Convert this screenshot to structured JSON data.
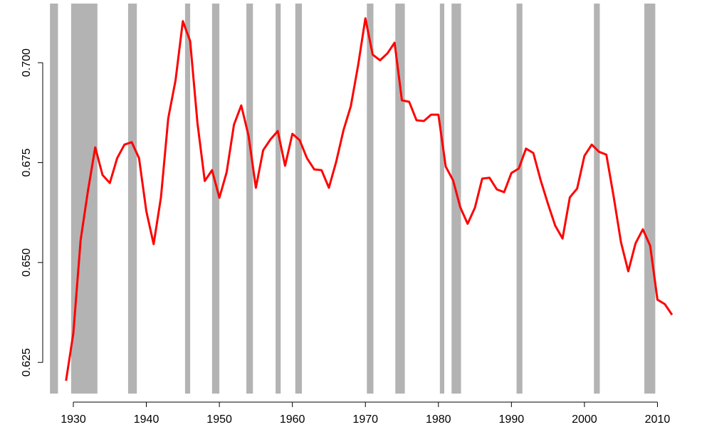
{
  "chart_data": {
    "type": "line",
    "color": "#ff0000",
    "band_color": "#b3b3b3",
    "x": [
      1929,
      1930,
      1931,
      1932,
      1933,
      1934,
      1935,
      1936,
      1937,
      1938,
      1939,
      1940,
      1941,
      1942,
      1943,
      1944,
      1945,
      1946,
      1947,
      1948,
      1949,
      1950,
      1951,
      1952,
      1953,
      1954,
      1955,
      1956,
      1957,
      1958,
      1959,
      1960,
      1961,
      1962,
      1963,
      1964,
      1965,
      1966,
      1967,
      1968,
      1969,
      1970,
      1971,
      1972,
      1973,
      1974,
      1975,
      1976,
      1977,
      1978,
      1979,
      1980,
      1981,
      1982,
      1983,
      1984,
      1985,
      1986,
      1987,
      1988,
      1989,
      1990,
      1991,
      1992,
      1993,
      1994,
      1995,
      1996,
      1997,
      1998,
      1999,
      2000,
      2001,
      2002,
      2003,
      2004,
      2005,
      2006,
      2007,
      2008,
      2009,
      2010,
      2011,
      2012
    ],
    "values": [
      0.6204,
      0.6323,
      0.6556,
      0.6679,
      0.6788,
      0.6719,
      0.6699,
      0.6761,
      0.6795,
      0.6801,
      0.6761,
      0.6628,
      0.6546,
      0.6663,
      0.6861,
      0.6956,
      0.7104,
      0.7054,
      0.6849,
      0.6704,
      0.6731,
      0.6662,
      0.6726,
      0.6845,
      0.6893,
      0.6817,
      0.6687,
      0.6781,
      0.6808,
      0.6829,
      0.6742,
      0.6822,
      0.6806,
      0.6761,
      0.6733,
      0.6731,
      0.6687,
      0.6752,
      0.6831,
      0.6891,
      0.6993,
      0.7111,
      0.702,
      0.7006,
      0.7023,
      0.705,
      0.6906,
      0.6902,
      0.6856,
      0.6854,
      0.687,
      0.687,
      0.674,
      0.6706,
      0.6638,
      0.6597,
      0.6637,
      0.671,
      0.6712,
      0.6683,
      0.6676,
      0.6724,
      0.6735,
      0.6785,
      0.6774,
      0.6706,
      0.6647,
      0.6592,
      0.656,
      0.6663,
      0.6685,
      0.6767,
      0.6795,
      0.6777,
      0.677,
      0.6665,
      0.6551,
      0.6478,
      0.6548,
      0.6583,
      0.6542,
      0.6407,
      0.6396,
      0.6369
    ],
    "recessions": [
      [
        1926.8,
        1927.9
      ],
      [
        1929.7,
        1933.3
      ],
      [
        1937.5,
        1938.7
      ],
      [
        1945.3,
        1946.0
      ],
      [
        1949.0,
        1950.0
      ],
      [
        1953.7,
        1954.6
      ],
      [
        1957.7,
        1958.4
      ],
      [
        1960.4,
        1961.3
      ],
      [
        1970.2,
        1971.1
      ],
      [
        1974.1,
        1975.4
      ],
      [
        1980.2,
        1980.8
      ],
      [
        1981.8,
        1983.1
      ],
      [
        1990.7,
        1991.5
      ],
      [
        2001.3,
        2002.1
      ],
      [
        2008.2,
        2009.7
      ]
    ],
    "xlim": [
      1926.1,
      2016.1
    ],
    "ylim": [
      0.6172,
      0.7148
    ],
    "xticks": [
      1930,
      1940,
      1950,
      1960,
      1970,
      1980,
      1990,
      2000,
      2010
    ],
    "yticks": [
      0.625,
      {
        "value": 0.65,
        "label": "0.650"
      },
      0.675,
      {
        "value": 0.7,
        "label": "0.700"
      }
    ]
  }
}
